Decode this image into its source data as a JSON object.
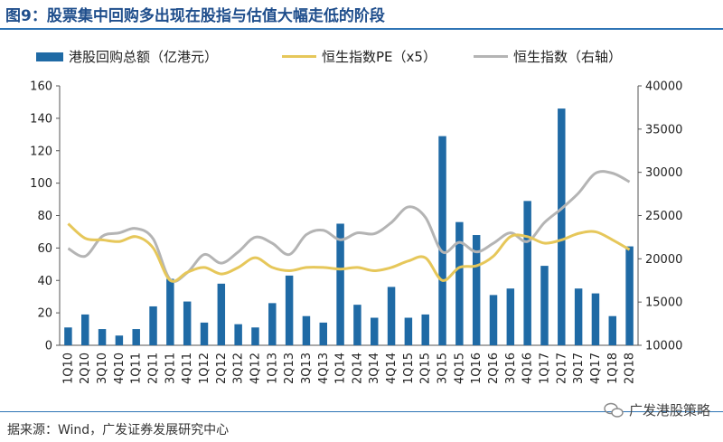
{
  "header": {
    "title": "图9：股票集中回购多出现在股指与估值大幅走低的阶段"
  },
  "footer": {
    "source": "据来源：Wind，广发证券发展研究中心",
    "brand": "广发港股策略"
  },
  "colors": {
    "bar": "#1f6aa5",
    "pe": "#e6c75a",
    "index": "#b4b4b4",
    "accent": "#1f4e8c"
  },
  "chart_data": {
    "type": "bar",
    "categories": [
      "1Q10",
      "2Q10",
      "3Q10",
      "4Q10",
      "1Q11",
      "2Q11",
      "3Q11",
      "4Q11",
      "1Q12",
      "2Q12",
      "3Q12",
      "4Q12",
      "1Q13",
      "2Q13",
      "3Q13",
      "4Q13",
      "1Q14",
      "2Q14",
      "3Q14",
      "4Q14",
      "1Q15",
      "2Q15",
      "3Q15",
      "4Q15",
      "1Q16",
      "2Q16",
      "3Q16",
      "4Q16",
      "1Q17",
      "2Q17",
      "3Q17",
      "4Q17",
      "1Q18",
      "2Q18"
    ],
    "series": [
      {
        "name": "港股回购总额（亿港元）",
        "type": "bar",
        "axis": "left",
        "values": [
          11,
          19,
          10,
          6,
          10,
          24,
          41,
          27,
          14,
          38,
          13,
          11,
          26,
          43,
          18,
          14,
          75,
          25,
          17,
          36,
          17,
          19,
          129,
          76,
          68,
          31,
          35,
          89,
          49,
          146,
          35,
          32,
          18,
          61
        ]
      },
      {
        "name": "恒生指数PE（x5）",
        "type": "line",
        "axis": "left",
        "values": [
          75,
          66,
          65,
          64,
          67,
          60,
          40,
          45,
          48,
          44,
          48,
          54,
          48,
          46,
          48,
          48,
          47,
          48,
          46,
          48,
          52,
          54,
          40,
          48,
          49,
          55,
          67,
          67,
          63,
          65,
          69,
          70,
          65,
          59
        ]
      },
      {
        "name": "恒生指数（右轴）",
        "type": "line",
        "axis": "right",
        "values": [
          21200,
          20300,
          22600,
          23000,
          23500,
          22300,
          17600,
          18400,
          20500,
          19500,
          20800,
          22500,
          21800,
          20500,
          22800,
          23300,
          22200,
          23000,
          22900,
          24200,
          26000,
          24800,
          20800,
          21900,
          20800,
          21800,
          23000,
          22000,
          24200,
          25800,
          27600,
          29900,
          29900,
          28900
        ]
      }
    ],
    "y_left": {
      "min": 0,
      "max": 160,
      "ticks": [
        0,
        20,
        40,
        60,
        80,
        100,
        120,
        140,
        160
      ]
    },
    "y_right": {
      "min": 10000,
      "max": 40000,
      "ticks": [
        10000,
        15000,
        20000,
        25000,
        30000,
        35000,
        40000
      ]
    },
    "grid": false,
    "legend_position": "top"
  }
}
